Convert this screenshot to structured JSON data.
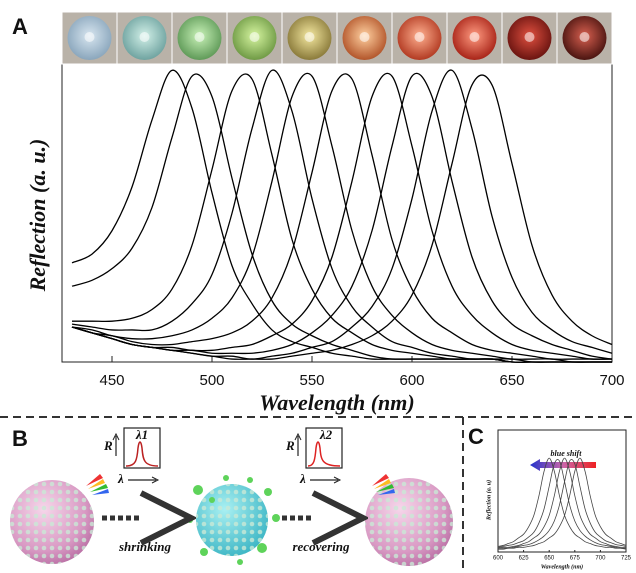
{
  "chart_data": [
    {
      "type": "line",
      "panel": "A",
      "x_label": "Wavelength (nm)",
      "y_label": "Reflection (a. u.)",
      "x": [
        430,
        440,
        450,
        460,
        470,
        480,
        490,
        500,
        510,
        520,
        530,
        540,
        550,
        560,
        570,
        580,
        590,
        600,
        610,
        620,
        630,
        640,
        650,
        660,
        670,
        680,
        690,
        700
      ],
      "xlim": [
        425,
        700
      ],
      "xticks": [
        450,
        500,
        550,
        600,
        650,
        700
      ],
      "ylim": [
        0,
        1.2
      ],
      "series": [
        {
          "color": "#000000",
          "values": [
            0.34,
            0.37,
            0.45,
            0.6,
            0.83,
            1.0,
            0.87,
            0.58,
            0.33,
            0.2,
            0.11,
            0.07,
            0.05,
            0.03,
            0.02,
            0.01,
            0.01,
            0.01,
            0.01,
            0.01,
            0.01,
            0.01,
            0,
            0,
            0,
            0,
            0,
            0
          ]
        },
        {
          "color": "#000000",
          "values": [
            0.26,
            0.28,
            0.32,
            0.39,
            0.53,
            0.77,
            0.98,
            0.91,
            0.63,
            0.37,
            0.21,
            0.13,
            0.09,
            0.06,
            0.04,
            0.02,
            0.01,
            0.01,
            0.01,
            0.01,
            0.01,
            0.01,
            0,
            0,
            0,
            0,
            0,
            0
          ]
        },
        {
          "color": "#000000",
          "values": [
            0.14,
            0.14,
            0.14,
            0.15,
            0.18,
            0.25,
            0.4,
            0.66,
            0.93,
            0.97,
            0.71,
            0.42,
            0.25,
            0.15,
            0.1,
            0.06,
            0.04,
            0.03,
            0.02,
            0.01,
            0.01,
            0.01,
            0,
            0,
            0,
            0,
            0,
            0
          ]
        },
        {
          "color": "#000000",
          "values": [
            0.13,
            0.12,
            0.11,
            0.11,
            0.11,
            0.14,
            0.2,
            0.3,
            0.51,
            0.8,
            1.0,
            0.86,
            0.56,
            0.32,
            0.19,
            0.12,
            0.07,
            0.05,
            0.03,
            0.02,
            0.01,
            0.01,
            0.01,
            0,
            0,
            0,
            0,
            0
          ]
        },
        {
          "color": "#000000",
          "values": [
            0.12,
            0.11,
            0.09,
            0.08,
            0.08,
            0.09,
            0.11,
            0.15,
            0.22,
            0.36,
            0.62,
            0.91,
            0.98,
            0.74,
            0.45,
            0.26,
            0.16,
            0.1,
            0.06,
            0.04,
            0.03,
            0.02,
            0.01,
            0.01,
            0.01,
            0,
            0,
            0
          ]
        },
        {
          "color": "#000000",
          "values": [
            0.12,
            0.1,
            0.09,
            0.07,
            0.06,
            0.06,
            0.07,
            0.08,
            0.1,
            0.14,
            0.22,
            0.38,
            0.65,
            0.93,
            0.97,
            0.71,
            0.42,
            0.25,
            0.15,
            0.1,
            0.06,
            0.04,
            0.03,
            0.02,
            0.01,
            0.01,
            0.01,
            0.01
          ]
        },
        {
          "color": "#000000",
          "values": [
            0.12,
            0.1,
            0.08,
            0.06,
            0.05,
            0.05,
            0.04,
            0.04,
            0.05,
            0.06,
            0.09,
            0.13,
            0.21,
            0.36,
            0.62,
            0.91,
            0.98,
            0.74,
            0.45,
            0.26,
            0.16,
            0.1,
            0.06,
            0.04,
            0.03,
            0.02,
            0.01,
            0.01
          ]
        },
        {
          "color": "#000000",
          "values": [
            0.12,
            0.1,
            0.08,
            0.06,
            0.05,
            0.04,
            0.04,
            0.03,
            0.03,
            0.03,
            0.04,
            0.06,
            0.1,
            0.16,
            0.26,
            0.45,
            0.74,
            0.98,
            0.91,
            0.62,
            0.36,
            0.21,
            0.13,
            0.09,
            0.06,
            0.04,
            0.02,
            0.01
          ]
        },
        {
          "color": "#000000",
          "values": [
            0.12,
            0.1,
            0.08,
            0.06,
            0.05,
            0.04,
            0.03,
            0.02,
            0.02,
            0.01,
            0.02,
            0.03,
            0.05,
            0.07,
            0.12,
            0.19,
            0.32,
            0.56,
            0.86,
            1.0,
            0.8,
            0.5,
            0.29,
            0.17,
            0.11,
            0.07,
            0.05,
            0.03
          ]
        },
        {
          "color": "#000000",
          "values": [
            0.12,
            0.1,
            0.08,
            0.06,
            0.05,
            0.04,
            0.03,
            0.02,
            0.01,
            0.01,
            0.01,
            0.02,
            0.03,
            0.04,
            0.06,
            0.09,
            0.14,
            0.23,
            0.4,
            0.68,
            0.95,
            0.95,
            0.68,
            0.4,
            0.23,
            0.14,
            0.09,
            0.06
          ]
        }
      ]
    },
    {
      "type": "line",
      "panel": "C",
      "x_label": "Wavelength (nm)",
      "y_label": "Reflection (a. u)",
      "annotation": "blue shift",
      "x": [
        600,
        605,
        610,
        615,
        620,
        625,
        630,
        635,
        640,
        645,
        650,
        655,
        660,
        665,
        670,
        675,
        680,
        685,
        690,
        695,
        700,
        705,
        710,
        715,
        720,
        725
      ],
      "xlim": [
        600,
        725
      ],
      "xticks": [
        600,
        625,
        650,
        675,
        700,
        725
      ],
      "ylim": [
        0,
        1.3
      ],
      "series": [
        {
          "color": "#444444",
          "values": [
            0.06,
            0.07,
            0.09,
            0.11,
            0.15,
            0.19,
            0.27,
            0.39,
            0.6,
            0.86,
            1.0,
            0.86,
            0.6,
            0.39,
            0.27,
            0.19,
            0.15,
            0.11,
            0.09,
            0.07,
            0.06,
            0.05,
            0.05,
            0.04,
            0.04,
            0.03
          ]
        },
        {
          "color": "#444444",
          "values": [
            0.05,
            0.06,
            0.07,
            0.08,
            0.1,
            0.12,
            0.16,
            0.21,
            0.31,
            0.46,
            0.7,
            0.94,
            0.97,
            0.75,
            0.5,
            0.33,
            0.23,
            0.17,
            0.13,
            0.1,
            0.08,
            0.07,
            0.06,
            0.05,
            0.04,
            0.04
          ]
        },
        {
          "color": "#444444",
          "values": [
            0.04,
            0.05,
            0.05,
            0.06,
            0.07,
            0.09,
            0.11,
            0.15,
            0.19,
            0.27,
            0.39,
            0.6,
            0.86,
            1.0,
            0.86,
            0.6,
            0.39,
            0.27,
            0.19,
            0.15,
            0.11,
            0.09,
            0.07,
            0.06,
            0.05,
            0.05
          ]
        },
        {
          "color": "#444444",
          "values": [
            0.03,
            0.04,
            0.04,
            0.05,
            0.06,
            0.07,
            0.08,
            0.1,
            0.13,
            0.17,
            0.23,
            0.33,
            0.5,
            0.75,
            0.97,
            0.94,
            0.7,
            0.46,
            0.31,
            0.21,
            0.16,
            0.12,
            0.1,
            0.08,
            0.07,
            0.06
          ]
        },
        {
          "color": "#444444",
          "values": [
            0.03,
            0.03,
            0.04,
            0.04,
            0.05,
            0.05,
            0.06,
            0.07,
            0.09,
            0.11,
            0.15,
            0.19,
            0.27,
            0.39,
            0.6,
            0.86,
            1.0,
            0.86,
            0.6,
            0.39,
            0.27,
            0.19,
            0.15,
            0.11,
            0.09,
            0.07
          ]
        }
      ]
    }
  ],
  "panel_b": {
    "label": "B",
    "inset_1": {
      "peak": "λ1",
      "y_axis": "R",
      "x_axis": "λ"
    },
    "inset_2": {
      "peak": "λ2",
      "y_axis": "R",
      "x_axis": "λ"
    },
    "step_1": "shrinking",
    "step_2": "recovering"
  }
}
